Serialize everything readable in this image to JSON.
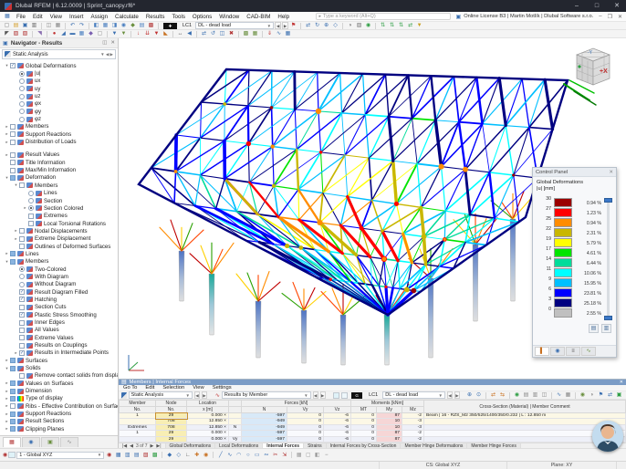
{
  "titlebar": {
    "app_title": "Dlubal RFEM | 6.12.0009 | Sprint_canopy.rf6*"
  },
  "menubar": {
    "items": [
      "File",
      "Edit",
      "View",
      "Insert",
      "Assign",
      "Calculate",
      "Results",
      "Tools",
      "Options",
      "Window",
      "CAD-BIM",
      "Help"
    ],
    "search_placeholder": "Type a keyword (Alt+Q)",
    "license": "Online License B3 | Martin Motlík | Dlubal Software s.r.o."
  },
  "load_case": {
    "short": "LC1",
    "name": "DL - dead load"
  },
  "toolbars": {
    "row1_left": [
      {
        "n": "new",
        "g": "▢",
        "c": "#777"
      },
      {
        "n": "open",
        "g": "▤",
        "c": "#d69f2b"
      },
      {
        "n": "save",
        "g": "▣",
        "c": "#3a6fb0"
      },
      {
        "n": "print",
        "g": "▥",
        "c": "#666"
      },
      {
        "sep": 1
      },
      {
        "n": "copy",
        "g": "◫",
        "c": "#888"
      },
      {
        "n": "paste",
        "g": "▦",
        "c": "#888"
      },
      {
        "sep": 1
      },
      {
        "n": "undo",
        "g": "↶",
        "c": "#3a6fb0"
      },
      {
        "n": "redo",
        "g": "↷",
        "c": "#3a6fb0"
      },
      {
        "sep": 1
      },
      {
        "n": "panel-left",
        "g": "◧",
        "c": "#4a7fc0"
      },
      {
        "n": "panel-grid",
        "g": "▦",
        "c": "#4a7fc0"
      },
      {
        "n": "panel-split",
        "g": "◨",
        "c": "#4a7fc0"
      },
      {
        "n": "model-view",
        "g": "◉",
        "c": "#4a7fc0"
      },
      {
        "n": "render-mode",
        "g": "◆",
        "c": "#6a8f3f"
      },
      {
        "n": "tables",
        "g": "▤",
        "c": "#4a7fc0"
      },
      {
        "n": "calculate",
        "g": "▩",
        "c": "#b03030"
      },
      {
        "sep": 1
      }
    ],
    "row1_right": [
      {
        "n": "flag",
        "g": "⚑",
        "c": "#c03030"
      },
      {
        "sep": 1
      },
      {
        "n": "pan",
        "g": "⇄",
        "c": "#3a6fb0"
      },
      {
        "n": "rotate-view",
        "g": "↻",
        "c": "#3a6fb0"
      },
      {
        "n": "zoom-in",
        "g": "⊕",
        "c": "#3a6fb0"
      },
      {
        "n": "isometric-view",
        "g": "◇",
        "c": "#3a6fb0"
      },
      {
        "sep": 1
      },
      {
        "n": "visibility",
        "g": "◑",
        "c": "#777"
      },
      {
        "n": "layers",
        "g": "▧",
        "c": "#777"
      },
      {
        "n": "user-profile",
        "g": "◉",
        "c": "#2f9e44"
      },
      {
        "sep": 1
      },
      {
        "n": "axes-x",
        "g": "⇅",
        "c": "#2f9e44"
      },
      {
        "n": "axes-y",
        "g": "⇅",
        "c": "#2f9e44"
      },
      {
        "n": "axes-z",
        "g": "⇅",
        "c": "#2f9e44"
      },
      {
        "n": "axes-all",
        "g": "⇄",
        "c": "#2f9e44"
      },
      {
        "n": "result-display",
        "g": "▼",
        "c": "#c8a020"
      }
    ],
    "row2": [
      {
        "n": "select",
        "g": "◤",
        "c": "#555"
      },
      {
        "n": "select-box",
        "g": "▨",
        "c": "#b03030"
      },
      {
        "n": "select-special",
        "g": "▧",
        "c": "#b03030"
      },
      {
        "sep": 1
      },
      {
        "n": "guide-line",
        "g": "◥",
        "c": "#8a6fb0"
      },
      {
        "sep": 1
      },
      {
        "n": "node",
        "g": "●",
        "c": "#c03030"
      },
      {
        "n": "line",
        "g": "◢",
        "c": "#3a6fb0"
      },
      {
        "n": "member",
        "g": "▬",
        "c": "#3a6fb0"
      },
      {
        "n": "surface",
        "g": "▦",
        "c": "#4a7fc0"
      },
      {
        "n": "solid",
        "g": "◆",
        "c": "#7a5fb0"
      },
      {
        "n": "opening",
        "g": "▢",
        "c": "#888"
      },
      {
        "sep": 1
      },
      {
        "n": "nodal-support",
        "g": "▼",
        "c": "#3a6fb0"
      },
      {
        "n": "line-support",
        "g": "▼",
        "c": "#6a8f3f"
      },
      {
        "sep": 1
      },
      {
        "n": "nodal-load",
        "g": "↓",
        "c": "#c03030"
      },
      {
        "n": "member-load",
        "g": "⇊",
        "c": "#c03030"
      },
      {
        "n": "surface-load",
        "g": "▼",
        "c": "#c03030"
      },
      {
        "n": "free-load",
        "g": "◣",
        "c": "#c87020"
      },
      {
        "sep": 1
      },
      {
        "n": "dimension",
        "g": "↔",
        "c": "#555"
      },
      {
        "n": "section",
        "g": "◀",
        "c": "#3a6fb0"
      },
      {
        "sep": 1
      },
      {
        "n": "edit-move",
        "g": "⇄",
        "c": "#3a6fb0"
      },
      {
        "n": "edit-rotate",
        "g": "↺",
        "c": "#3a6fb0"
      },
      {
        "n": "edit-mirror",
        "g": "◫",
        "c": "#3a6fb0"
      },
      {
        "n": "edit-delete",
        "g": "✖",
        "c": "#b03030"
      },
      {
        "sep": 1
      },
      {
        "n": "mesh",
        "g": "▩",
        "c": "#6a8f3f"
      },
      {
        "n": "mesh-settings",
        "g": "▦",
        "c": "#6a8f3f"
      },
      {
        "sep": 1
      },
      {
        "n": "loads-on",
        "g": "⇓",
        "c": "#c03030"
      },
      {
        "n": "results-on",
        "g": "∿",
        "c": "#3a6fb0"
      },
      {
        "n": "values-on",
        "g": "▦",
        "c": "#3a6fb0"
      }
    ],
    "bottom": [
      {
        "n": "cs-icon",
        "g": "◉",
        "c": "#b03030"
      },
      {
        "n": "work-plane-xy",
        "g": "▦",
        "c": "#3a6fb0"
      },
      {
        "n": "work-plane-xz",
        "g": "▥",
        "c": "#3a6fb0"
      },
      {
        "n": "work-plane-yz",
        "g": "▤",
        "c": "#3a6fb0"
      },
      {
        "n": "plane-offset",
        "g": "▧",
        "c": "#b03030"
      },
      {
        "n": "grid",
        "g": "▩",
        "c": "#2f9e44"
      },
      {
        "sep": 1
      },
      {
        "n": "snap",
        "g": "◆",
        "c": "#3a6fb0"
      },
      {
        "n": "osnap",
        "g": "◇",
        "c": "#3a6fb0"
      },
      {
        "n": "ortho",
        "g": "∟",
        "c": "#555"
      },
      {
        "n": "cartesian",
        "g": "✚",
        "c": "#c87020"
      },
      {
        "n": "polar",
        "g": "◉",
        "c": "#c87020"
      },
      {
        "sep": 1
      },
      {
        "n": "line-tool",
        "g": "╱",
        "c": "#3a6fb0"
      },
      {
        "n": "polyline-tool",
        "g": "∿",
        "c": "#3a6fb0"
      },
      {
        "n": "arc-tool",
        "g": "◠",
        "c": "#3a6fb0"
      },
      {
        "n": "circle-tool",
        "g": "○",
        "c": "#3a6fb0"
      },
      {
        "n": "rect-tool",
        "g": "▭",
        "c": "#3a6fb0"
      },
      {
        "n": "spline-tool",
        "g": "∾",
        "c": "#3a6fb0"
      },
      {
        "n": "trim-tool",
        "g": "✂",
        "c": "#b03030"
      },
      {
        "n": "extend-tool",
        "g": "⇲",
        "c": "#b03030"
      },
      {
        "sep": 1
      },
      {
        "n": "select-all",
        "g": "▦",
        "c": "#999"
      },
      {
        "n": "deselect",
        "g": "▢",
        "c": "#999"
      },
      {
        "n": "filter",
        "g": "◧",
        "c": "#999"
      },
      {
        "n": "minus",
        "g": "−",
        "c": "#777"
      }
    ],
    "bp_row": [
      {
        "n": "find-member",
        "g": "⊕",
        "c": "#3a6fb0"
      },
      {
        "n": "find-node",
        "g": "⊙",
        "c": "#3a6fb0"
      },
      {
        "sep": 1
      },
      {
        "n": "sync-view",
        "g": "⇄",
        "c": "#c87020"
      },
      {
        "n": "sync-sel",
        "g": "⇆",
        "c": "#c87020"
      },
      {
        "sep": 1
      },
      {
        "n": "person",
        "g": "◉",
        "c": "#2f9e44"
      },
      {
        "n": "table-export",
        "g": "▤",
        "c": "#888"
      },
      {
        "n": "table-print",
        "g": "▥",
        "c": "#888"
      },
      {
        "n": "table-copy",
        "g": "◫",
        "c": "#888"
      },
      {
        "sep": 1
      },
      {
        "n": "chart-view",
        "g": "∿",
        "c": "#3a6fb0"
      },
      {
        "n": "grid-view",
        "g": "▦",
        "c": "#888"
      },
      {
        "sep": 1
      },
      {
        "n": "settings-1",
        "g": "◉",
        "c": "#6a8f3f"
      },
      {
        "n": "settings-2",
        "g": "◑",
        "c": "#888"
      },
      {
        "n": "filter-results",
        "g": "⚑",
        "c": "#3a6fb0"
      },
      {
        "n": "relations",
        "g": "⇄",
        "c": "#3a6fb0"
      },
      {
        "n": "export-xlsx",
        "g": "▣",
        "c": "#2f9e44"
      }
    ]
  },
  "navigator": {
    "title": "Navigator - Results",
    "analysis": "Static Analysis",
    "coord_system": "1 - Global XYZ",
    "tree": [
      {
        "i": 0,
        "e": "v",
        "c": "cbc",
        "label": "Global Deformations"
      },
      {
        "i": 1,
        "c": "rs",
        "label": "|u|"
      },
      {
        "i": 1,
        "c": "r",
        "label": "ux"
      },
      {
        "i": 1,
        "c": "r",
        "label": "uy"
      },
      {
        "i": 1,
        "c": "r",
        "label": "uz"
      },
      {
        "i": 1,
        "c": "r",
        "label": "φx"
      },
      {
        "i": 1,
        "c": "r",
        "label": "φy"
      },
      {
        "i": 1,
        "c": "r",
        "label": "φz"
      },
      {
        "i": 0,
        "e": ">",
        "c": "cb",
        "label": "Members"
      },
      {
        "i": 0,
        "e": ">",
        "c": "cb",
        "label": "Support Reactions"
      },
      {
        "i": 0,
        "e": ">",
        "c": "cb",
        "label": "Distribution of Loads"
      },
      {
        "gap": 1
      },
      {
        "i": 0,
        "e": ">",
        "c": "cb",
        "label": "Result Values"
      },
      {
        "i": 0,
        "c": "cb",
        "label": "Title Information"
      },
      {
        "i": 0,
        "c": "cb",
        "label": "Max/Min Information"
      },
      {
        "i": 0,
        "e": "v",
        "c": "cbm",
        "label": "Deformation"
      },
      {
        "i": 1,
        "e": "v",
        "c": "cb",
        "label": "Members"
      },
      {
        "i": 2,
        "c": "r",
        "label": "Lines"
      },
      {
        "i": 2,
        "c": "r",
        "label": "Section"
      },
      {
        "i": 2,
        "e": ">",
        "c": "rs",
        "label": "Section Colored"
      },
      {
        "i": 2,
        "c": "cb",
        "label": "Extremes"
      },
      {
        "i": 2,
        "c": "cb",
        "label": "Local Torsional Rotations"
      },
      {
        "i": 1,
        "e": ">",
        "c": "cb",
        "label": "Nodal Displacements"
      },
      {
        "i": 1,
        "e": ">",
        "c": "cb",
        "label": "Extreme Displacement"
      },
      {
        "i": 1,
        "c": "cb",
        "label": "Outlines of Deformed Surfaces"
      },
      {
        "i": 0,
        "e": ">",
        "c": "cbm",
        "label": "Lines"
      },
      {
        "i": 0,
        "e": "v",
        "c": "cbm",
        "label": "Members"
      },
      {
        "i": 1,
        "c": "rs",
        "label": "Two-Colored"
      },
      {
        "i": 1,
        "c": "r",
        "label": "With Diagram"
      },
      {
        "i": 1,
        "c": "r",
        "label": "Without Diagram"
      },
      {
        "i": 1,
        "c": "cbc",
        "label": "Result Diagram Filled"
      },
      {
        "i": 1,
        "c": "cbc",
        "label": "Hatching"
      },
      {
        "i": 1,
        "c": "cb",
        "label": "Section Cuts"
      },
      {
        "i": 1,
        "c": "cbc",
        "label": "Plastic Stress Smoothing"
      },
      {
        "i": 1,
        "c": "cb",
        "label": "Inner Edges"
      },
      {
        "i": 1,
        "c": "cb",
        "label": "All Values"
      },
      {
        "i": 1,
        "c": "cb",
        "label": "Extreme Values"
      },
      {
        "i": 1,
        "c": "cb",
        "label": "Results on Couplings"
      },
      {
        "i": 1,
        "e": ">",
        "c": "cbc",
        "label": "Results in Intermediate Points"
      },
      {
        "i": 0,
        "e": ">",
        "c": "cbm",
        "label": "Surfaces"
      },
      {
        "i": 0,
        "e": "v",
        "c": "cbm",
        "label": "Solids"
      },
      {
        "i": 1,
        "c": "cb",
        "label": "Remove contact solids from display"
      },
      {
        "i": 0,
        "e": ">",
        "c": "cbm",
        "label": "Values on Surfaces"
      },
      {
        "i": 0,
        "e": ">",
        "c": "cbm",
        "label": "Dimension"
      },
      {
        "i": 0,
        "e": ">",
        "c": "cbm",
        "label": "Type of display",
        "icon": "rainbow"
      },
      {
        "i": 0,
        "e": ">",
        "c": "cb",
        "label": "Ribs - Effective Contribution on Surface/Member"
      },
      {
        "i": 0,
        "e": ">",
        "c": "cbm",
        "label": "Support Reactions"
      },
      {
        "i": 0,
        "e": ">",
        "c": "cbm",
        "label": "Result Sections"
      },
      {
        "i": 0,
        "e": ">",
        "c": "cbm",
        "label": "Clipping Planes"
      }
    ]
  },
  "control_panel": {
    "title": "Control Panel",
    "line1": "Global Deformations",
    "line2": "|u| [mm]",
    "ticks": [
      "30",
      "27",
      "25",
      "22",
      "19",
      "17",
      "14",
      "11",
      "9",
      "6",
      "3",
      "0"
    ],
    "bands": [
      {
        "color": "#9B0000",
        "pct": "0.94 %"
      },
      {
        "color": "#FF0000",
        "pct": "1.23 %"
      },
      {
        "color": "#FF8C00",
        "pct": "0.94 %"
      },
      {
        "color": "#C9B700",
        "pct": "2.31 %"
      },
      {
        "color": "#FFFF00",
        "pct": "5.79 %"
      },
      {
        "color": "#00E400",
        "pct": "4.61 %"
      },
      {
        "color": "#00DC9B",
        "pct": "6.44 %"
      },
      {
        "color": "#00FFFF",
        "pct": "10.06 %"
      },
      {
        "color": "#00BFFF",
        "pct": "15.95 %"
      },
      {
        "color": "#0000FF",
        "pct": "23.81 %"
      },
      {
        "color": "#000080",
        "pct": "25.18 %"
      },
      {
        "color": "#C0C0C0",
        "pct": "2.55 %"
      }
    ]
  },
  "viewport": {
    "cube_label": "+X"
  },
  "table_panel": {
    "caption": "Members | Internal Forces",
    "menu": [
      "Go To",
      "Edit",
      "Selection",
      "View",
      "Settings"
    ],
    "analysis": "Static Analysis",
    "results_by": "Results by Member",
    "header_row1": [
      "Member",
      "Node",
      "Location",
      "",
      "Forces [kN]",
      "Moments [kNm]",
      "Cross-Section (Material) | Member Comment"
    ],
    "header_row2": [
      "No.",
      "No.",
      "x [m]",
      "",
      "N",
      "Vy",
      "Vz",
      "MT",
      "My",
      "Mz"
    ],
    "rows": [
      [
        "1",
        "29",
        "0.000 ×",
        "",
        "-597",
        "0",
        "-6",
        "0",
        "87",
        "-2",
        "Beam | 16 - RZS_M2 350/525/1400/350/0.232 | L : 12.850 m"
      ],
      [
        "",
        "708",
        "12.850 ×",
        "",
        "-949",
        "0",
        "-6",
        "0",
        "10",
        "-3",
        ""
      ],
      [
        "Extremes",
        "708",
        "12.850 ×",
        "N",
        "-949",
        "0",
        "-6",
        "0",
        "10",
        "-3",
        ""
      ],
      [
        "1",
        "29",
        "0.000 ×",
        "",
        "-597",
        "0",
        "-6",
        "0",
        "87",
        "-2",
        ""
      ],
      [
        "",
        "29",
        "0.000 ×",
        "Vy",
        "-597",
        "0",
        "-6",
        "0",
        "87",
        "-2",
        ""
      ]
    ],
    "pager": "3 of 7",
    "tabs": [
      "Global Deformations",
      "Local Deformations",
      "Internal Forces",
      "Strains",
      "Internal Forces by Cross-Section",
      "Member Hinge Deformations",
      "Member Hinge Forces"
    ],
    "active_tab_index": 2
  },
  "statusbar": {
    "cs": "CS: Global XYZ",
    "plane": "Plane: XY"
  }
}
